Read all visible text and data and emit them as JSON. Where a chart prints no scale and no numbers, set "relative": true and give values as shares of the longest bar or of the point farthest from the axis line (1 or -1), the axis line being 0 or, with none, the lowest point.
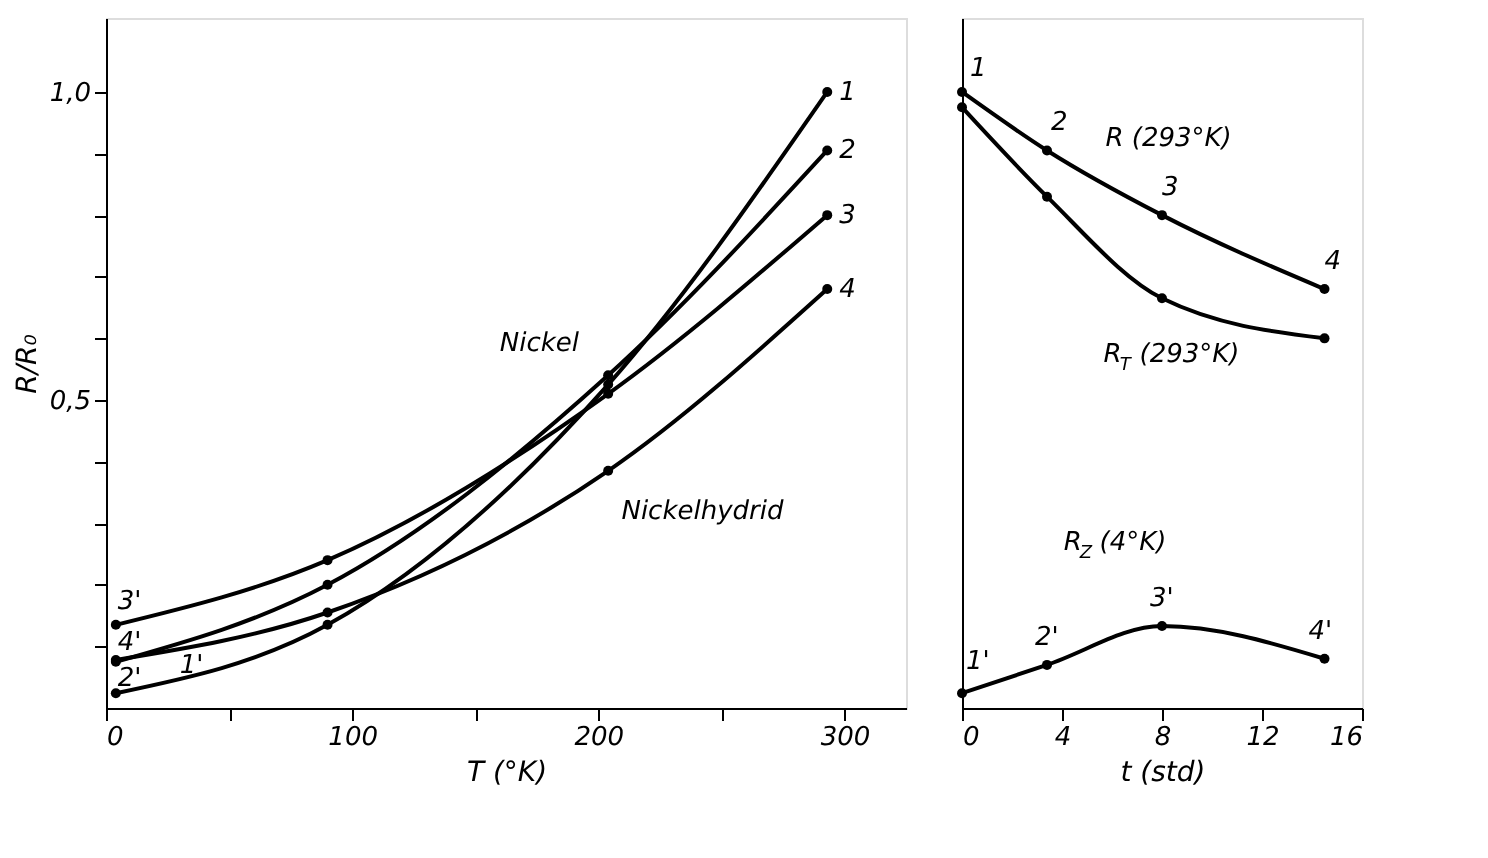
{
  "chart_data": [
    {
      "type": "line",
      "xlabel": "T (°K)",
      "ylabel": "R/R₀",
      "x": [
        4,
        90,
        204,
        293
      ],
      "series": [
        {
          "color": "#000000",
          "values": [
            0.024,
            0.135,
            0.525,
            1.0
          ]
        },
        {
          "color": "#000000",
          "values": [
            0.075,
            0.2,
            0.54,
            0.905
          ]
        },
        {
          "color": "#000000",
          "values": [
            0.135,
            0.24,
            0.51,
            0.8
          ]
        },
        {
          "color": "#000000",
          "values": [
            0.078,
            0.155,
            0.385,
            0.68
          ]
        }
      ],
      "xlim": [
        0,
        325
      ],
      "xticks": [
        0,
        {
          "value": 50,
          "label": null
        },
        100,
        {
          "value": 150,
          "label": null
        },
        200,
        {
          "value": 250,
          "label": null
        },
        300
      ],
      "ylim": [
        0,
        1.12
      ],
      "yticks": [
        {
          "value": 0.1,
          "label": null
        },
        {
          "value": 0.2,
          "label": null
        },
        {
          "value": 0.3,
          "label": null
        },
        {
          "value": 0.4,
          "label": null
        },
        {
          "value": 0.5,
          "label": "0,5"
        },
        {
          "value": 0.6,
          "label": null
        },
        {
          "value": 0.7,
          "label": null
        },
        {
          "value": 0.8,
          "label": null
        },
        {
          "value": 0.9,
          "label": null
        },
        {
          "value": 1.0,
          "label": "1,0"
        }
      ],
      "grid": false,
      "marker": "circle",
      "line_style": "solid",
      "annotations": [
        {
          "text": "1",
          "x": 293,
          "y": 1.0
        },
        {
          "text": "2",
          "x": 293,
          "y": 0.905
        },
        {
          "text": "3",
          "x": 293,
          "y": 0.8
        },
        {
          "text": "4",
          "x": 293,
          "y": 0.68
        },
        {
          "text": "3'",
          "x": 4,
          "y": 0.135
        },
        {
          "text": "4'",
          "x": 4,
          "y": 0.078
        },
        {
          "text": "2'",
          "x": 4,
          "y": 0.075
        },
        {
          "text": "1'",
          "x": 4,
          "y": 0.024
        },
        {
          "text": "Nickel",
          "x": 204,
          "y": 0.54
        },
        {
          "text": "Nickelhydrid",
          "x": 204,
          "y": 0.385
        }
      ]
    },
    {
      "type": "line",
      "xlabel": "t (std)",
      "series": [
        {
          "color": "#000000",
          "x": [
            0,
            3.4,
            8,
            14.5
          ],
          "values": [
            1.0,
            0.905,
            0.8,
            0.68
          ]
        },
        {
          "color": "#000000",
          "x": [
            0,
            3.4,
            8,
            14.5
          ],
          "values": [
            0.975,
            0.83,
            0.665,
            0.6
          ]
        },
        {
          "color": "#000000",
          "x": [
            0,
            3.4,
            8,
            14.5
          ],
          "values": [
            0.024,
            0.07,
            0.133,
            0.08
          ]
        }
      ],
      "xlim": [
        0,
        16
      ],
      "xticks": [
        0,
        4,
        8,
        12,
        16
      ],
      "relative": true,
      "grid": false,
      "marker": "circle",
      "line_style": "solid",
      "annotations": [
        {
          "text": "1",
          "x": 0,
          "y": 1.0
        },
        {
          "text": "2",
          "x": 3.4,
          "y": 0.905
        },
        {
          "text": "R (293°K)",
          "x": 5.6,
          "y": 0.86
        },
        {
          "text": "3",
          "x": 8,
          "y": 0.8
        },
        {
          "text": "4",
          "x": 14.5,
          "y": 0.68
        },
        {
          "text": "R$_{T}$ (293°K)",
          "x": 8,
          "y": 0.665
        },
        {
          "text": "R$_{Z}$ (4°K)",
          "x": 8,
          "y": 0.133
        },
        {
          "text": "3'",
          "x": 8,
          "y": 0.133
        },
        {
          "text": "2'",
          "x": 3.4,
          "y": 0.07
        },
        {
          "text": "1'",
          "x": 0,
          "y": 0.024
        },
        {
          "text": "4'",
          "x": 14.5,
          "y": 0.08
        }
      ]
    }
  ]
}
